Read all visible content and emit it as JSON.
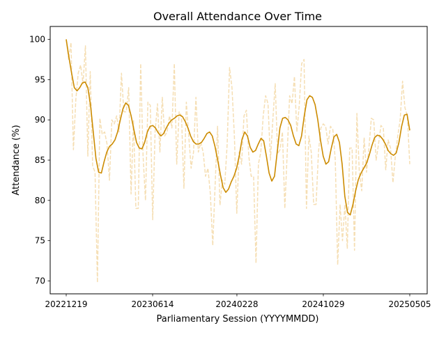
{
  "chart_data": {
    "type": "line",
    "title": "Overall Attendance Over Time",
    "xlabel": "Parliamentary Session (YYYYMMDD)",
    "ylabel": "Attendance (%)",
    "x_ticks": [
      "20221219",
      "20230614",
      "20240228",
      "20241029",
      "20250505"
    ],
    "y_ticks": [
      70,
      75,
      80,
      85,
      90,
      95,
      100
    ],
    "ylim": [
      68.4,
      101.6
    ],
    "x_index_range": [
      0,
      159
    ],
    "x_tick_positions": [
      0,
      40,
      79,
      119,
      159
    ],
    "colors": {
      "raw": "#f5deb3",
      "smooth": "#cc8b00"
    },
    "series": [
      {
        "style": "dashed",
        "color": "#f5deb3",
        "points": [
          [
            0,
            100
          ],
          [
            1,
            97.5
          ],
          [
            2,
            99.6
          ],
          [
            3,
            86.3
          ],
          [
            4,
            92.5
          ],
          [
            5,
            95.8
          ],
          [
            6,
            96.8
          ],
          [
            7,
            94.5
          ],
          [
            8,
            99.2
          ],
          [
            9,
            85.5
          ],
          [
            10,
            96.0
          ],
          [
            11,
            84.3
          ],
          [
            12,
            83.5
          ],
          [
            13,
            69.8
          ],
          [
            14,
            90.2
          ],
          [
            15,
            88.2
          ],
          [
            16,
            88.5
          ],
          [
            17,
            87.0
          ],
          [
            18,
            82.5
          ],
          [
            19,
            90.0
          ],
          [
            20,
            89.5
          ],
          [
            21,
            90.5
          ],
          [
            22,
            88.5
          ],
          [
            23,
            95.8
          ],
          [
            24,
            91.0
          ],
          [
            25,
            91.0
          ],
          [
            26,
            94.0
          ],
          [
            27,
            80.8
          ],
          [
            28,
            90.0
          ],
          [
            29,
            79.0
          ],
          [
            30,
            79.0
          ],
          [
            31,
            97.0
          ],
          [
            32,
            85.5
          ],
          [
            33,
            80.0
          ],
          [
            34,
            92.2
          ],
          [
            35,
            91.8
          ],
          [
            36,
            77.6
          ],
          [
            37,
            88.5
          ],
          [
            38,
            92.0
          ],
          [
            39,
            86.0
          ],
          [
            40,
            92.8
          ],
          [
            41,
            88.0
          ],
          [
            42,
            88.5
          ],
          [
            43,
            90.5
          ],
          [
            44,
            89.0
          ],
          [
            45,
            97.0
          ],
          [
            46,
            84.5
          ],
          [
            47,
            91.0
          ],
          [
            48,
            90.5
          ],
          [
            49,
            81.5
          ],
          [
            50,
            92.2
          ],
          [
            51,
            88.0
          ],
          [
            52,
            84.0
          ],
          [
            53,
            86.0
          ],
          [
            54,
            92.8
          ],
          [
            55,
            86.0
          ],
          [
            56,
            87.2
          ],
          [
            57,
            86.0
          ],
          [
            58,
            83.0
          ],
          [
            59,
            84.0
          ],
          [
            60,
            80.8
          ],
          [
            61,
            74.4
          ],
          [
            62,
            82.0
          ],
          [
            63,
            89.2
          ],
          [
            64,
            79.4
          ],
          [
            65,
            82.5
          ],
          [
            66,
            82.0
          ],
          [
            67,
            87.0
          ],
          [
            68,
            96.5
          ],
          [
            69,
            94.0
          ],
          [
            70,
            88.0
          ],
          [
            71,
            78.4
          ],
          [
            72,
            86.0
          ],
          [
            73,
            84.5
          ],
          [
            74,
            90.5
          ],
          [
            75,
            91.2
          ],
          [
            76,
            85.5
          ],
          [
            77,
            83.0
          ],
          [
            78,
            83.0
          ],
          [
            79,
            72.2
          ],
          [
            80,
            84.5
          ],
          [
            81,
            86.0
          ],
          [
            82,
            90.5
          ],
          [
            83,
            93.0
          ],
          [
            84,
            92.0
          ],
          [
            85,
            85.0
          ],
          [
            86,
            90.0
          ],
          [
            87,
            94.5
          ],
          [
            88,
            85.8
          ],
          [
            89,
            86.3
          ],
          [
            90,
            88.5
          ],
          [
            91,
            79.0
          ],
          [
            92,
            86.0
          ],
          [
            93,
            93.0
          ],
          [
            94,
            92.0
          ],
          [
            95,
            95.4
          ],
          [
            96,
            88.5
          ],
          [
            97,
            91.8
          ],
          [
            98,
            97.0
          ],
          [
            99,
            97.5
          ],
          [
            100,
            79.0
          ],
          [
            101,
            88.0
          ],
          [
            102,
            86.0
          ],
          [
            103,
            79.5
          ],
          [
            104,
            79.5
          ],
          [
            105,
            86.0
          ],
          [
            106,
            89.0
          ],
          [
            107,
            89.5
          ],
          [
            108,
            89.2
          ],
          [
            109,
            87.0
          ],
          [
            110,
            89.2
          ],
          [
            111,
            88.8
          ],
          [
            112,
            85.0
          ],
          [
            113,
            72.0
          ],
          [
            114,
            79.5
          ],
          [
            115,
            75.0
          ],
          [
            116,
            79.5
          ],
          [
            117,
            74.0
          ],
          [
            118,
            86.5
          ],
          [
            119,
            86.5
          ],
          [
            120,
            73.8
          ],
          [
            121,
            90.8
          ],
          [
            122,
            83.5
          ],
          [
            123,
            81.2
          ],
          [
            124,
            87.8
          ],
          [
            125,
            83.5
          ],
          [
            126,
            86.5
          ],
          [
            127,
            90.2
          ],
          [
            128,
            90.0
          ],
          [
            129,
            85.0
          ],
          [
            130,
            87.0
          ],
          [
            131,
            89.3
          ],
          [
            132,
            89.0
          ],
          [
            133,
            83.8
          ],
          [
            134,
            87.5
          ],
          [
            135,
            86.5
          ],
          [
            136,
            82.2
          ],
          [
            137,
            85.5
          ],
          [
            138,
            88.0
          ],
          [
            139,
            90.0
          ],
          [
            140,
            94.8
          ],
          [
            141,
            91.5
          ],
          [
            142,
            90.5
          ],
          [
            143,
            84.5
          ]
        ]
      },
      {
        "style": "solid",
        "color": "#cc8b00",
        "points": [
          [
            0,
            100.0
          ],
          [
            1,
            97.8
          ],
          [
            2,
            95.8
          ],
          [
            3,
            94.0
          ],
          [
            4,
            93.6
          ],
          [
            5,
            94.0
          ],
          [
            6,
            94.6
          ],
          [
            7,
            94.7
          ],
          [
            8,
            94.0
          ],
          [
            9,
            91.8
          ],
          [
            10,
            88.5
          ],
          [
            11,
            85.2
          ],
          [
            12,
            83.5
          ],
          [
            13,
            83.4
          ],
          [
            14,
            84.8
          ],
          [
            15,
            86.0
          ],
          [
            16,
            86.7
          ],
          [
            17,
            87.0
          ],
          [
            18,
            87.5
          ],
          [
            19,
            88.5
          ],
          [
            20,
            90.0
          ],
          [
            21,
            91.4
          ],
          [
            22,
            92.1
          ],
          [
            23,
            91.8
          ],
          [
            24,
            90.5
          ],
          [
            25,
            88.8
          ],
          [
            26,
            87.2
          ],
          [
            27,
            86.5
          ],
          [
            28,
            86.4
          ],
          [
            29,
            87.2
          ],
          [
            30,
            88.5
          ],
          [
            31,
            89.2
          ],
          [
            32,
            89.3
          ],
          [
            33,
            89.0
          ],
          [
            34,
            88.4
          ],
          [
            35,
            88.0
          ],
          [
            36,
            88.3
          ],
          [
            37,
            89.0
          ],
          [
            38,
            89.6
          ],
          [
            39,
            90.0
          ],
          [
            40,
            90.2
          ],
          [
            41,
            90.5
          ],
          [
            42,
            90.6
          ],
          [
            43,
            90.4
          ],
          [
            44,
            89.8
          ],
          [
            45,
            89.0
          ],
          [
            46,
            88.0
          ],
          [
            47,
            87.3
          ],
          [
            48,
            87.0
          ],
          [
            49,
            87.0
          ],
          [
            50,
            87.2
          ],
          [
            51,
            87.7
          ],
          [
            52,
            88.3
          ],
          [
            53,
            88.5
          ],
          [
            54,
            88.0
          ],
          [
            55,
            86.7
          ],
          [
            56,
            85.0
          ],
          [
            57,
            83.2
          ],
          [
            58,
            81.6
          ],
          [
            59,
            81.0
          ],
          [
            60,
            81.4
          ],
          [
            61,
            82.3
          ],
          [
            62,
            83.0
          ],
          [
            63,
            84.0
          ],
          [
            64,
            85.6
          ],
          [
            65,
            87.6
          ],
          [
            66,
            88.5
          ],
          [
            67,
            88.0
          ],
          [
            68,
            86.6
          ],
          [
            69,
            86.0
          ],
          [
            70,
            86.2
          ],
          [
            71,
            87.0
          ],
          [
            72,
            87.7
          ],
          [
            73,
            87.4
          ],
          [
            74,
            85.5
          ],
          [
            75,
            83.4
          ],
          [
            76,
            82.4
          ],
          [
            77,
            83.0
          ],
          [
            78,
            86.0
          ],
          [
            79,
            89.0
          ],
          [
            80,
            90.2
          ],
          [
            81,
            90.3
          ],
          [
            82,
            90.0
          ],
          [
            83,
            89.3
          ],
          [
            84,
            88.0
          ],
          [
            85,
            87.0
          ],
          [
            86,
            86.8
          ],
          [
            87,
            88.0
          ],
          [
            88,
            90.5
          ],
          [
            89,
            92.5
          ],
          [
            90,
            93.0
          ],
          [
            91,
            92.8
          ],
          [
            92,
            91.9
          ],
          [
            93,
            90.0
          ],
          [
            94,
            87.5
          ],
          [
            95,
            85.5
          ],
          [
            96,
            84.5
          ],
          [
            97,
            84.8
          ],
          [
            98,
            86.5
          ],
          [
            99,
            87.9
          ],
          [
            100,
            88.2
          ],
          [
            101,
            87.2
          ],
          [
            102,
            84.5
          ],
          [
            103,
            80.5
          ],
          [
            104,
            78.5
          ],
          [
            105,
            78.2
          ],
          [
            106,
            79.5
          ],
          [
            107,
            81.2
          ],
          [
            108,
            82.6
          ],
          [
            109,
            83.4
          ],
          [
            110,
            84.0
          ],
          [
            111,
            84.6
          ],
          [
            112,
            85.6
          ],
          [
            113,
            86.8
          ],
          [
            114,
            87.8
          ],
          [
            115,
            88.1
          ],
          [
            116,
            88.0
          ],
          [
            117,
            87.6
          ],
          [
            118,
            87.0
          ],
          [
            119,
            86.2
          ],
          [
            120,
            85.8
          ],
          [
            121,
            85.6
          ],
          [
            122,
            85.9
          ],
          [
            123,
            87.2
          ],
          [
            124,
            89.2
          ],
          [
            125,
            90.6
          ],
          [
            126,
            90.7
          ],
          [
            127,
            88.7
          ]
        ]
      }
    ]
  }
}
